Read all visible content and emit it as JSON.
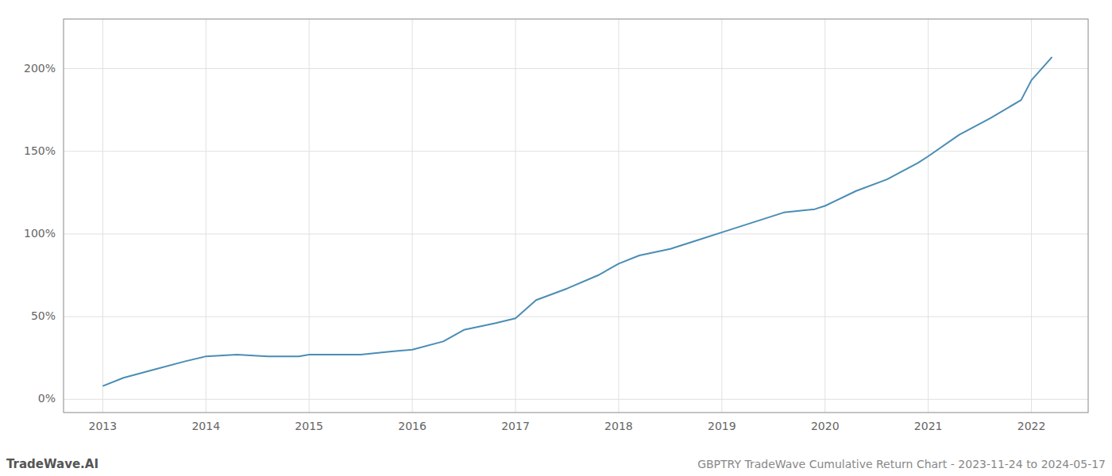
{
  "chart_data": {
    "type": "line",
    "x": [
      2013.0,
      2013.2,
      2013.5,
      2013.8,
      2014.0,
      2014.3,
      2014.6,
      2014.9,
      2015.0,
      2015.2,
      2015.5,
      2015.8,
      2016.0,
      2016.3,
      2016.5,
      2016.8,
      2017.0,
      2017.2,
      2017.5,
      2017.8,
      2018.0,
      2018.2,
      2018.5,
      2018.8,
      2019.0,
      2019.3,
      2019.6,
      2019.9,
      2020.0,
      2020.3,
      2020.6,
      2020.9,
      2021.0,
      2021.3,
      2021.6,
      2021.9,
      2022.0,
      2022.2
    ],
    "values": [
      8,
      13,
      18,
      23,
      26,
      27,
      26,
      26,
      27,
      27,
      27,
      29,
      30,
      35,
      42,
      46,
      49,
      60,
      67,
      75,
      82,
      87,
      91,
      97,
      101,
      107,
      113,
      115,
      117,
      126,
      133,
      143,
      147,
      160,
      170,
      181,
      193,
      207
    ],
    "color": "#4a8db5",
    "xlim": [
      2012.62,
      2022.55
    ],
    "xticks": [
      2013,
      2014,
      2015,
      2016,
      2017,
      2018,
      2019,
      2020,
      2021,
      2022
    ],
    "ylim": [
      -8,
      230
    ],
    "yticks": [
      {
        "value": 0,
        "label": "0%"
      },
      {
        "value": 50,
        "label": "50%"
      },
      {
        "value": 100,
        "label": "100%"
      },
      {
        "value": 150,
        "label": "150%"
      },
      {
        "value": 200,
        "label": "200%"
      }
    ],
    "grid": true,
    "annotations": [
      "TradeWave.AI",
      "GBPTRY TradeWave Cumulative Return Chart - 2023-11-24 to 2024-05-17"
    ]
  }
}
